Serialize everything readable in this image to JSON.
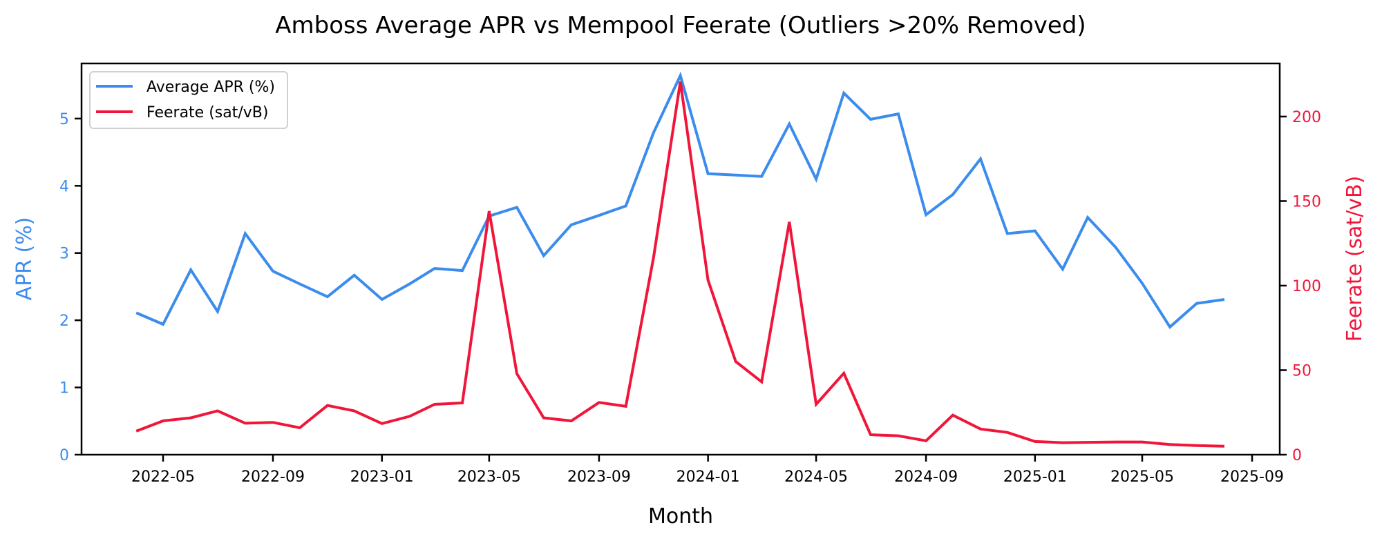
{
  "chart_data": {
    "type": "line",
    "title": "Amboss Average APR vs Mempool Feerate (Outliers >20% Removed)",
    "xlabel": "Month",
    "ylabel": "APR (%)",
    "ylabel_right": "Feerate (sat/vB)",
    "x": [
      "2022-04",
      "2022-05",
      "2022-06",
      "2022-07",
      "2022-08",
      "2022-09",
      "2022-10",
      "2022-11",
      "2022-12",
      "2023-01",
      "2023-02",
      "2023-03",
      "2023-04",
      "2023-05",
      "2023-06",
      "2023-07",
      "2023-08",
      "2023-09",
      "2023-10",
      "2023-11",
      "2023-12",
      "2024-01",
      "2024-02",
      "2024-03",
      "2024-04",
      "2024-05",
      "2024-06",
      "2024-07",
      "2024-08",
      "2024-09",
      "2024-10",
      "2024-11",
      "2024-12",
      "2025-01",
      "2025-02",
      "2025-03",
      "2025-04",
      "2025-05",
      "2025-06",
      "2025-07",
      "2025-08"
    ],
    "series": [
      {
        "name": "Average APR (%)",
        "axis": "left",
        "color": "#3b8ced",
        "values": [
          2.11,
          1.94,
          2.75,
          2.13,
          3.29,
          2.73,
          2.54,
          2.35,
          2.67,
          2.31,
          2.54,
          2.77,
          2.74,
          3.55,
          3.68,
          2.96,
          3.42,
          3.56,
          3.7,
          4.79,
          5.64,
          4.18,
          4.16,
          4.14,
          4.92,
          4.1,
          5.38,
          4.99,
          5.07,
          3.57,
          3.87,
          4.4,
          3.29,
          3.33,
          2.76,
          3.53,
          3.09,
          2.55,
          1.9,
          2.25,
          2.31
        ]
      },
      {
        "name": "Feerate (sat/vB)",
        "axis": "right",
        "color": "#f0163a",
        "values": [
          13.9,
          20.0,
          21.8,
          25.9,
          18.6,
          19.1,
          15.9,
          29.1,
          25.9,
          18.4,
          22.7,
          29.8,
          30.6,
          144.1,
          47.9,
          21.8,
          20.0,
          30.9,
          28.6,
          116.6,
          220.7,
          103.3,
          55.1,
          43.1,
          137.7,
          29.8,
          48.2,
          11.8,
          11.2,
          8.2,
          23.4,
          15.2,
          13.2,
          7.8,
          7.1,
          7.3,
          7.5,
          7.5,
          6.0,
          5.4,
          5.0
        ]
      }
    ],
    "ylim": [
      0,
      5.82
    ],
    "ylim_right": [
      0,
      231.4
    ],
    "yticks": [
      0,
      1,
      2,
      3,
      4,
      5
    ],
    "yticks_right": [
      0,
      50,
      100,
      150,
      200
    ],
    "xticks": [
      "2022-05",
      "2022-09",
      "2023-01",
      "2023-05",
      "2023-09",
      "2024-01",
      "2024-05",
      "2024-09",
      "2025-01",
      "2025-05",
      "2025-09"
    ],
    "grid": false,
    "legend_position": "upper left",
    "left_axis_color": "#3b8ced",
    "right_axis_color": "#f0163a"
  }
}
